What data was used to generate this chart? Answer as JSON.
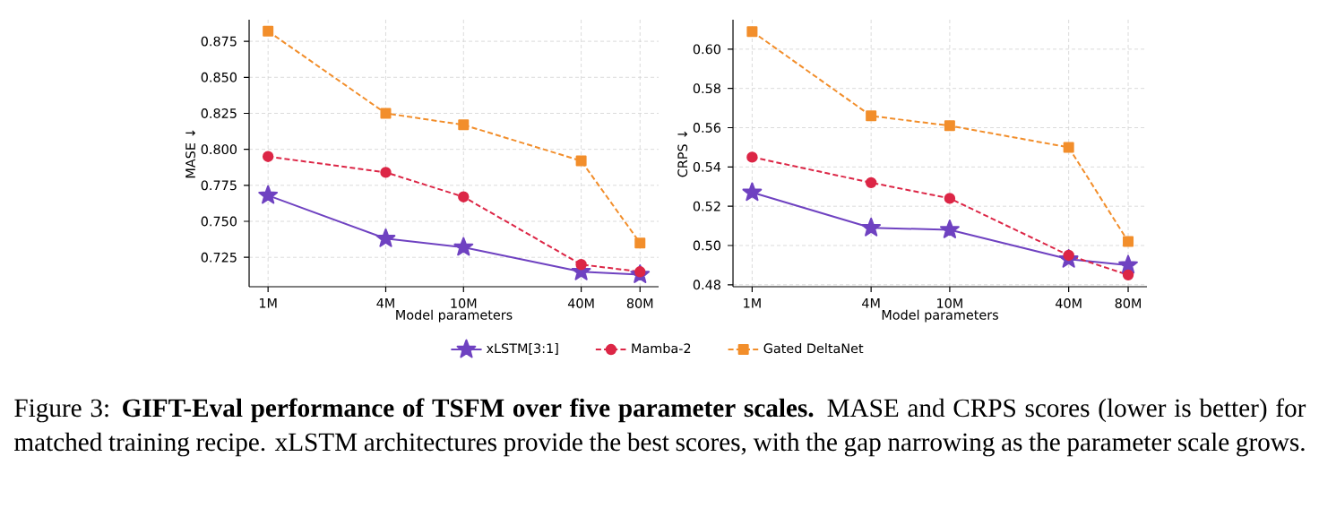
{
  "chart_data": [
    {
      "type": "line",
      "xlabel": "Model parameters",
      "ylabel": "MASE ↓",
      "log": "x",
      "x": [
        1000000,
        4000000,
        10000000,
        40000000,
        80000000
      ],
      "xlim": [
        800000,
        99600000
      ],
      "xticks": [
        {
          "value": 1000000,
          "label": "1M"
        },
        {
          "value": 4000000,
          "label": "4M"
        },
        {
          "value": 10000000,
          "label": "10M"
        },
        {
          "value": 40000000,
          "label": "40M"
        },
        {
          "value": 80000000,
          "label": "80M"
        }
      ],
      "ylim": [
        0.7046,
        0.89
      ],
      "yticks": [
        {
          "value": 0.725,
          "label": "0.725"
        },
        {
          "value": 0.75,
          "label": "0.750"
        },
        {
          "value": 0.775,
          "label": "0.775"
        },
        {
          "value": 0.8,
          "label": "0.800"
        },
        {
          "value": 0.825,
          "label": "0.825"
        },
        {
          "value": 0.85,
          "label": "0.850"
        },
        {
          "value": 0.875,
          "label": "0.875"
        }
      ],
      "grid": true,
      "legend": "bottom",
      "series": [
        {
          "name": "xLSTM[3:1]",
          "color": "#6f42c1",
          "marker": "star",
          "line_style": "solid",
          "values": [
            0.768,
            0.738,
            0.732,
            0.715,
            0.713
          ]
        },
        {
          "name": "Mamba-2",
          "color": "#dc2646",
          "marker": "circle",
          "line_style": "dashed",
          "values": [
            0.795,
            0.784,
            0.767,
            0.72,
            0.715
          ]
        },
        {
          "name": "Gated DeltaNet",
          "color": "#f28e2b",
          "marker": "square",
          "line_style": "dashed",
          "values": [
            0.882,
            0.825,
            0.817,
            0.792,
            0.735
          ]
        }
      ],
      "annotations": [
        "Figure 3: **GIFT-Eval performance of TSFM over five parameter scales.** MASE and CRPS scores (lower is better) for matched training recipe. xLSTM architectures provide the best scores, with the gap narrowing as the parameter scale grows."
      ]
    },
    {
      "type": "line",
      "xlabel": "Model parameters",
      "ylabel": "CRPS ↓",
      "log": "x",
      "x": [
        1000000,
        4000000,
        10000000,
        40000000,
        80000000
      ],
      "xlim": [
        800000,
        99600000
      ],
      "xticks": [
        {
          "value": 1000000,
          "label": "1M"
        },
        {
          "value": 4000000,
          "label": "4M"
        },
        {
          "value": 10000000,
          "label": "10M"
        },
        {
          "value": 40000000,
          "label": "40M"
        },
        {
          "value": 80000000,
          "label": "80M"
        }
      ],
      "ylim": [
        0.479,
        0.615
      ],
      "yticks": [
        {
          "value": 0.48,
          "label": "0.48"
        },
        {
          "value": 0.5,
          "label": "0.50"
        },
        {
          "value": 0.52,
          "label": "0.52"
        },
        {
          "value": 0.54,
          "label": "0.54"
        },
        {
          "value": 0.56,
          "label": "0.56"
        },
        {
          "value": 0.58,
          "label": "0.58"
        },
        {
          "value": 0.6,
          "label": "0.60"
        }
      ],
      "grid": true,
      "series": [
        {
          "color": "#6f42c1",
          "marker": "star",
          "line_style": "solid",
          "values": [
            0.527,
            0.509,
            0.508,
            0.493,
            0.49
          ]
        },
        {
          "color": "#dc2646",
          "marker": "circle",
          "line_style": "dashed",
          "values": [
            0.545,
            0.532,
            0.524,
            0.495,
            0.485
          ]
        },
        {
          "color": "#f28e2b",
          "marker": "square",
          "line_style": "dashed",
          "values": [
            0.609,
            0.566,
            0.561,
            0.55,
            0.502
          ]
        }
      ]
    }
  ]
}
